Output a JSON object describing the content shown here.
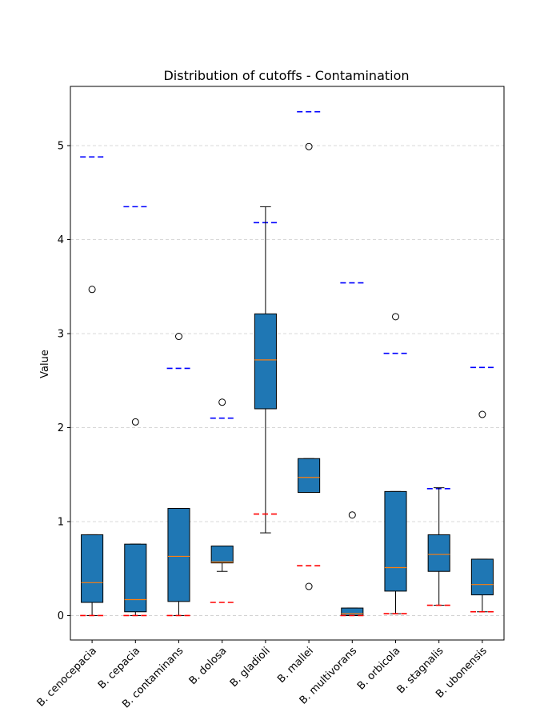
{
  "chart_data": {
    "type": "box",
    "title": "Distribution of cutoffs - Contamination",
    "xlabel": "",
    "ylabel": "Value",
    "ylim": [
      -0.26,
      5.63
    ],
    "yticks": [
      0,
      1,
      2,
      3,
      4,
      5
    ],
    "grid": "y-dashed",
    "colors": {
      "box_fill": "#1f77b4",
      "median": "#ff7f0e",
      "upper_cutoff": "#0000ff",
      "lower_cutoff": "#ff0000",
      "grid": "#cccccc"
    },
    "categories": [
      "B. cenocepacia",
      "B. cepacia",
      "B. contaminans",
      "B. dolosa",
      "B. gladioli",
      "B. mallei",
      "B. multivorans",
      "B. orbicola",
      "B. stagnalis",
      "B. ubonensis"
    ],
    "boxes": [
      {
        "q1": 0.14,
        "median": 0.35,
        "q3": 0.86,
        "whislo": 0.0,
        "whishi": 0.86,
        "fliers": [
          3.47
        ],
        "upper_cutoff": 4.88,
        "lower_cutoff": 0.0
      },
      {
        "q1": 0.04,
        "median": 0.17,
        "q3": 0.76,
        "whislo": 0.0,
        "whishi": 0.76,
        "fliers": [
          2.06
        ],
        "upper_cutoff": 4.35,
        "lower_cutoff": 0.0
      },
      {
        "q1": 0.15,
        "median": 0.63,
        "q3": 1.14,
        "whislo": 0.0,
        "whishi": 1.14,
        "fliers": [
          2.97
        ],
        "upper_cutoff": 2.63,
        "lower_cutoff": 0.0
      },
      {
        "q1": 0.56,
        "median": 0.57,
        "q3": 0.74,
        "whislo": 0.47,
        "whishi": 0.74,
        "fliers": [
          2.27
        ],
        "upper_cutoff": 2.1,
        "lower_cutoff": 0.14
      },
      {
        "q1": 2.2,
        "median": 2.72,
        "q3": 3.21,
        "whislo": 0.88,
        "whishi": 4.35,
        "fliers": [],
        "upper_cutoff": 4.18,
        "lower_cutoff": 1.08
      },
      {
        "q1": 1.31,
        "median": 1.47,
        "q3": 1.67,
        "whislo": 1.31,
        "whishi": 1.67,
        "fliers": [
          4.99,
          0.31
        ],
        "upper_cutoff": 5.36,
        "lower_cutoff": 0.53
      },
      {
        "q1": 0.0,
        "median": 0.02,
        "q3": 0.08,
        "whislo": 0.0,
        "whishi": 0.08,
        "fliers": [
          1.07
        ],
        "upper_cutoff": 3.54,
        "lower_cutoff": 0.0
      },
      {
        "q1": 0.26,
        "median": 0.51,
        "q3": 1.32,
        "whislo": 0.02,
        "whishi": 1.32,
        "fliers": [
          3.18
        ],
        "upper_cutoff": 2.79,
        "lower_cutoff": 0.02
      },
      {
        "q1": 0.47,
        "median": 0.65,
        "q3": 0.86,
        "whislo": 0.11,
        "whishi": 1.36,
        "fliers": [],
        "upper_cutoff": 1.35,
        "lower_cutoff": 0.11
      },
      {
        "q1": 0.22,
        "median": 0.33,
        "q3": 0.6,
        "whislo": 0.04,
        "whishi": 0.6,
        "fliers": [
          2.14
        ],
        "upper_cutoff": 2.64,
        "lower_cutoff": 0.04
      }
    ]
  }
}
